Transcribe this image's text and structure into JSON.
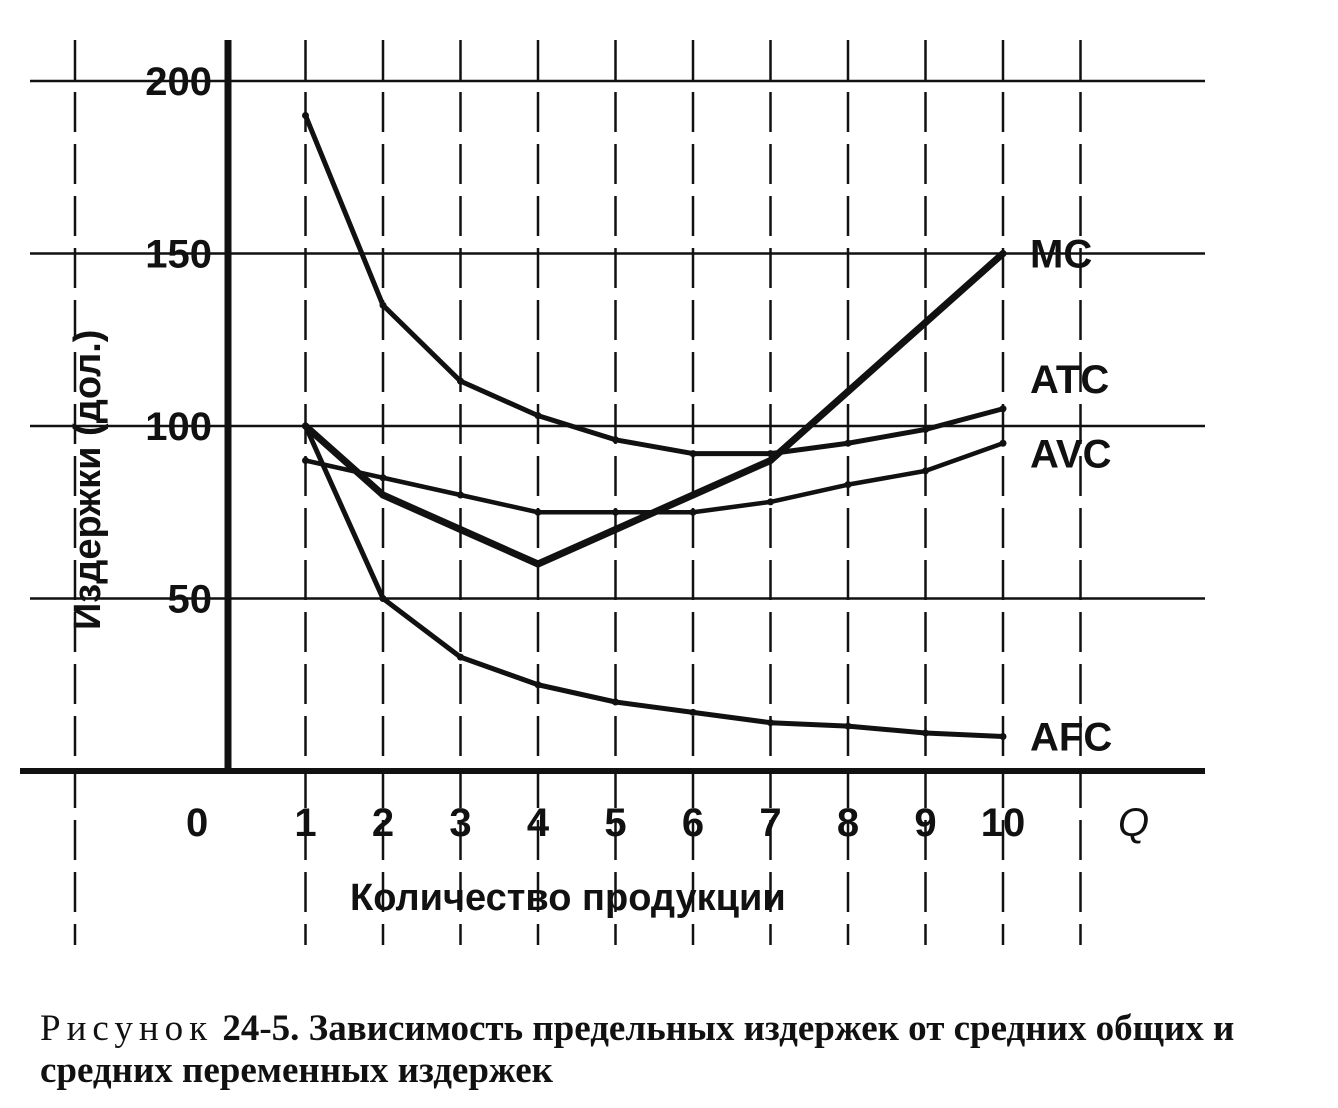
{
  "chart_data": {
    "type": "line",
    "ylabel": "Издержки (дол.)",
    "xlabel": "Количество продукции",
    "x_axis_symbol": "Q",
    "origin_label": "0",
    "xlim": [
      0,
      11
    ],
    "ylim": [
      0,
      200
    ],
    "x_ticks": [
      1,
      2,
      3,
      4,
      5,
      6,
      7,
      8,
      9,
      10
    ],
    "y_ticks": [
      50,
      100,
      150,
      200
    ],
    "grid": true,
    "series": [
      {
        "name": "MC",
        "x": [
          1,
          2,
          3,
          4,
          5,
          6,
          7,
          8,
          9,
          10
        ],
        "y": [
          100,
          80,
          70,
          60,
          70,
          80,
          90,
          110,
          130,
          150
        ]
      },
      {
        "name": "ATC",
        "x": [
          1,
          2,
          3,
          4,
          5,
          6,
          7,
          8,
          9,
          10
        ],
        "y": [
          190,
          135,
          113,
          103,
          96,
          92,
          92,
          95,
          99,
          105
        ]
      },
      {
        "name": "AVC",
        "x": [
          1,
          2,
          3,
          4,
          5,
          6,
          7,
          8,
          9,
          10
        ],
        "y": [
          90,
          85,
          80,
          75,
          75,
          75,
          78,
          83,
          87,
          95
        ]
      },
      {
        "name": "AFC",
        "x": [
          1,
          2,
          3,
          4,
          5,
          6,
          7,
          8,
          9,
          10
        ],
        "y": [
          100,
          50,
          33,
          25,
          20,
          17,
          14,
          13,
          11,
          10
        ]
      }
    ]
  },
  "caption": {
    "lead": "Рисунок",
    "text": "24-5. Зависимость предельных издержек от средних общих и средних переменных издержек"
  }
}
